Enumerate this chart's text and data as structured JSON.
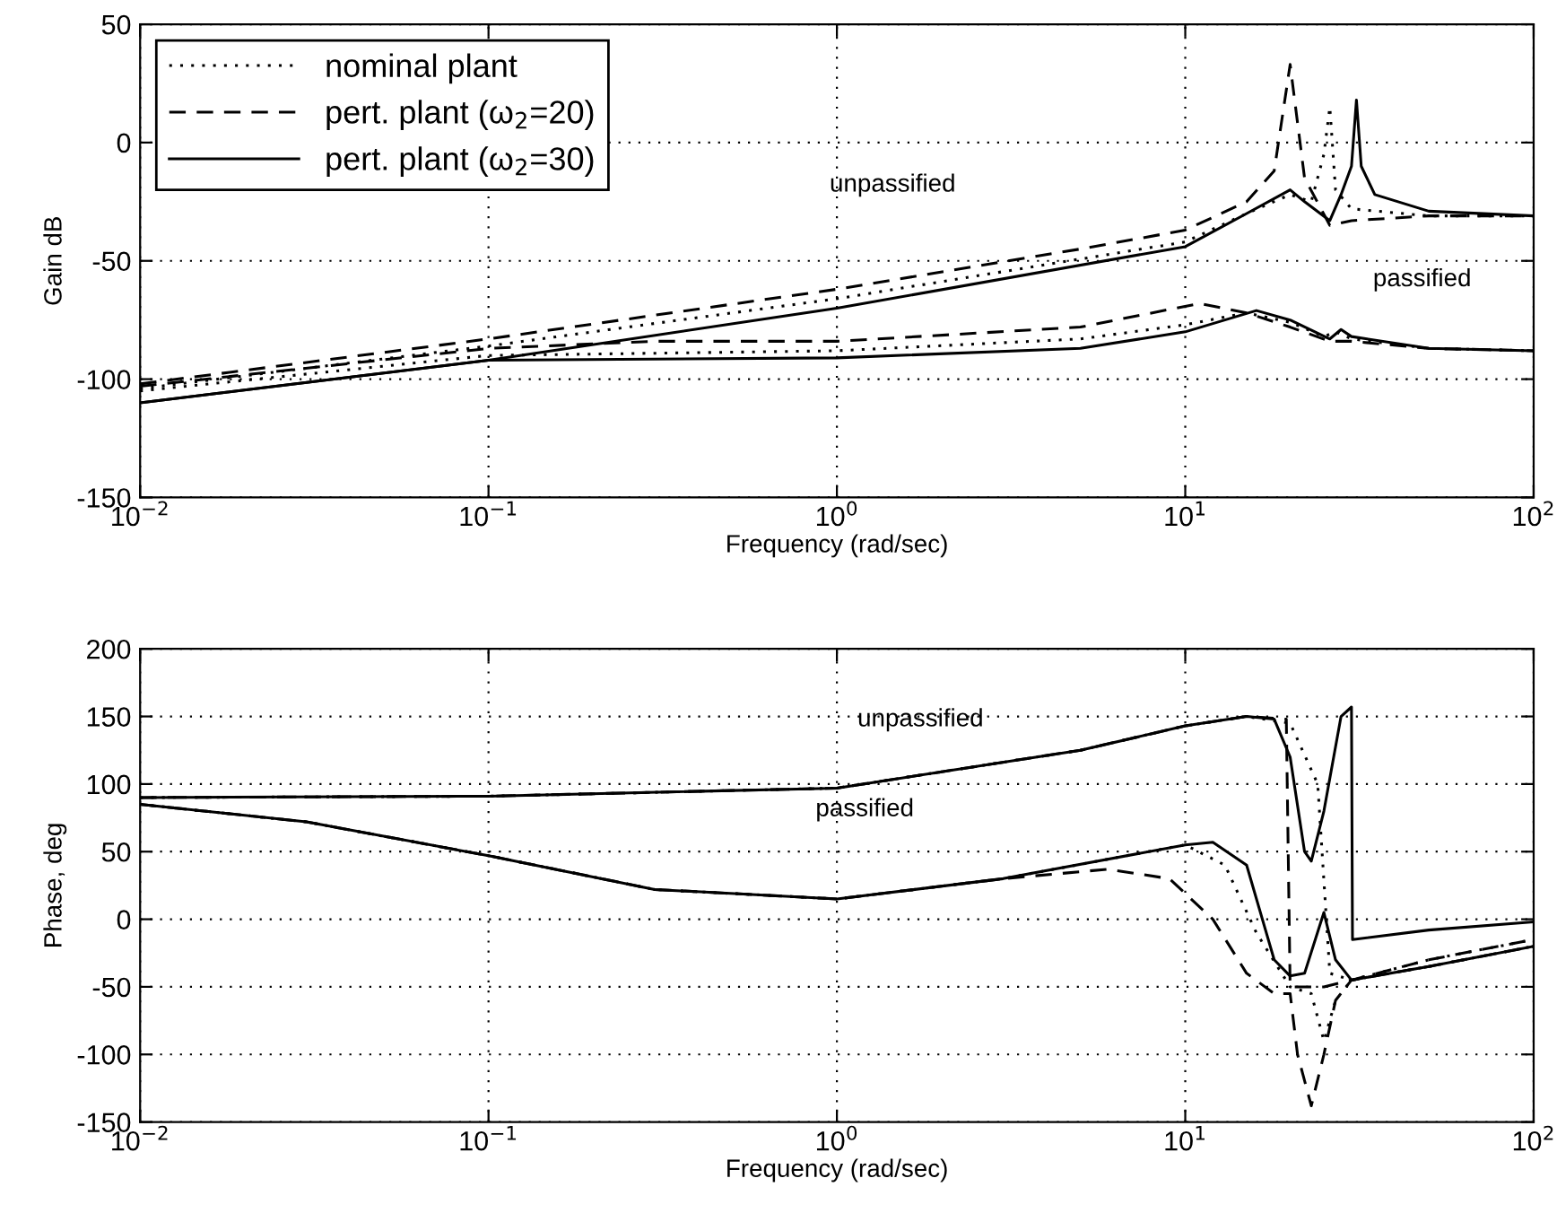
{
  "chart_data": [
    {
      "type": "line",
      "xlabel": "Frequency (rad/sec)",
      "ylabel": "Gain dB",
      "log": "x",
      "grid": true,
      "legend": "top left",
      "xlim": [
        0.01,
        100
      ],
      "ylim": [
        -150,
        50
      ],
      "xticks": [
        {
          "value": 0.01,
          "label": "10$^{−2}$"
        },
        {
          "value": 0.1,
          "label": "10$^{−1}$"
        },
        {
          "value": 1,
          "label": "10$^{0}$"
        },
        {
          "value": 10,
          "label": "10$^{1}$"
        },
        {
          "value": 100,
          "label": "10$^{2}$"
        }
      ],
      "yticks": [
        -150,
        -100,
        -50,
        0,
        50
      ],
      "series": [
        {
          "name": "nominal plant",
          "color": "#000000",
          "line_style": "dotted",
          "x": [
            0.01,
            0.1,
            1,
            10,
            15,
            20,
            23,
            25,
            26,
            27,
            30,
            50,
            100
          ],
          "values": [
            -104,
            -86,
            -66,
            -42,
            -30,
            -22,
            -25,
            -5,
            15,
            -20,
            -28,
            -31,
            -31
          ]
        },
        {
          "name": "pert. plant (ω$_{2}$=20)",
          "color": "#000000",
          "line_style": "dashed",
          "x": [
            0.01,
            0.1,
            1,
            5,
            10,
            15,
            18,
            20,
            22,
            26,
            30,
            50,
            100
          ],
          "values": [
            -102,
            -83,
            -62,
            -45,
            -37,
            -25,
            -12,
            33,
            -15,
            -35,
            -33,
            -31,
            -31
          ]
        },
        {
          "name": "pert. plant (ω$_{2}$=30)",
          "color": "#000000",
          "line_style": "solid",
          "x": [
            0.01,
            0.1,
            1,
            10,
            15,
            20,
            22,
            26,
            28,
            30,
            31,
            32,
            35,
            50,
            100
          ],
          "values": [
            -110,
            -92,
            -70,
            -44,
            -30,
            -20,
            -25,
            -33,
            -22,
            -10,
            18,
            -10,
            -22,
            -29,
            -31
          ]
        },
        {
          "color": "#000000",
          "line_style": "dotted",
          "x": [
            0.01,
            0.1,
            1,
            5,
            10,
            15,
            20,
            25,
            27,
            30,
            50,
            100
          ],
          "values": [
            -105,
            -90,
            -88,
            -83,
            -77,
            -72,
            -76,
            -82,
            -80,
            -83,
            -87,
            -88
          ]
        },
        {
          "color": "#000000",
          "line_style": "dashed",
          "x": [
            0.01,
            0.1,
            0.3,
            1,
            5,
            11,
            15,
            20,
            26,
            30,
            50,
            100
          ],
          "values": [
            -103,
            -87,
            -84,
            -84,
            -78,
            -68,
            -72,
            -78,
            -84,
            -84,
            -87,
            -88
          ]
        },
        {
          "color": "#000000",
          "line_style": "solid",
          "x": [
            0.01,
            0.1,
            1,
            5,
            10,
            16,
            20,
            26,
            28,
            30,
            50,
            100
          ],
          "values": [
            -110,
            -92,
            -91,
            -87,
            -80,
            -71,
            -75,
            -83,
            -79,
            -82,
            -87,
            -88
          ]
        }
      ],
      "annotations": [
        "unpassified",
        "passified"
      ]
    },
    {
      "type": "line",
      "xlabel": "Frequency (rad/sec)",
      "ylabel": "Phase, deg",
      "log": "x",
      "grid": true,
      "xlim": [
        0.01,
        100
      ],
      "ylim": [
        -150,
        200
      ],
      "xticks": [
        {
          "value": 0.01,
          "label": "10$^{−2}$"
        },
        {
          "value": 0.1,
          "label": "10$^{−1}$"
        },
        {
          "value": 1,
          "label": "10$^{0}$"
        },
        {
          "value": 10,
          "label": "10$^{1}$"
        },
        {
          "value": 100,
          "label": "10$^{2}$"
        }
      ],
      "yticks": [
        -150,
        -100,
        -50,
        0,
        50,
        100,
        150,
        200
      ],
      "series": [
        {
          "color": "#000000",
          "line_style": "dotted",
          "x": [
            0.01,
            0.1,
            1,
            5,
            10,
            15,
            20,
            24,
            26,
            30,
            50,
            100
          ],
          "values": [
            90,
            91,
            97,
            125,
            143,
            150,
            145,
            100,
            -40,
            -45,
            -30,
            -15
          ]
        },
        {
          "color": "#000000",
          "line_style": "dashed",
          "x": [
            0.01,
            0.1,
            1,
            5,
            10,
            15,
            19.5,
            20,
            25,
            30,
            50,
            100
          ],
          "values": [
            90,
            91,
            97,
            125,
            143,
            150,
            148,
            -50,
            -50,
            -45,
            -30,
            -15
          ]
        },
        {
          "color": "#000000",
          "line_style": "solid",
          "x": [
            0.01,
            0.1,
            1,
            5,
            10,
            15,
            18,
            20,
            22,
            23,
            25,
            28,
            30,
            30.2,
            50,
            100
          ],
          "values": [
            90,
            91,
            97,
            125,
            143,
            150,
            148,
            120,
            50,
            43,
            80,
            150,
            157,
            -15,
            -8,
            -2
          ]
        },
        {
          "color": "#000000",
          "line_style": "dotted",
          "x": [
            0.01,
            0.03,
            0.1,
            0.3,
            1,
            3,
            10,
            13,
            16,
            20,
            23,
            25,
            27,
            30,
            50,
            100
          ],
          "values": [
            85,
            72,
            47,
            22,
            15,
            30,
            55,
            40,
            -10,
            -50,
            -55,
            -90,
            -60,
            -45,
            -35,
            -20
          ]
        },
        {
          "color": "#000000",
          "line_style": "dashed",
          "x": [
            0.01,
            0.03,
            0.1,
            0.3,
            1,
            3,
            6,
            9,
            12,
            15,
            18,
            20,
            21,
            23,
            25,
            27,
            30,
            50,
            100
          ],
          "values": [
            85,
            72,
            47,
            22,
            15,
            30,
            37,
            30,
            0,
            -40,
            -55,
            -55,
            -100,
            -138,
            -100,
            -60,
            -45,
            -35,
            -20
          ]
        },
        {
          "color": "#000000",
          "line_style": "solid",
          "x": [
            0.01,
            0.03,
            0.1,
            0.3,
            1,
            3,
            10,
            12,
            15,
            18,
            20,
            22,
            25,
            27,
            30,
            50,
            100
          ],
          "values": [
            85,
            72,
            47,
            22,
            15,
            30,
            55,
            57,
            40,
            -30,
            -42,
            -40,
            5,
            -30,
            -45,
            -35,
            -20
          ]
        }
      ],
      "annotations": [
        "unpassified",
        "passified"
      ]
    }
  ]
}
